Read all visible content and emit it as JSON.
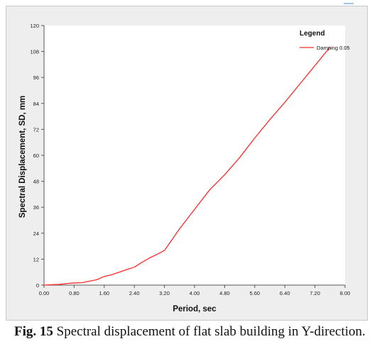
{
  "chart_data": {
    "type": "line",
    "xlabel": "Period, sec",
    "ylabel": "Spectral Displacement, SD, mm",
    "xlim": [
      0,
      8
    ],
    "ylim": [
      0,
      120
    ],
    "x_ticks": [
      "0.00",
      "0.80",
      "1.60",
      "2.40",
      "3.20",
      "4.00",
      "4.80",
      "5.60",
      "6.40",
      "7.20",
      "8.00"
    ],
    "y_ticks": [
      "0",
      "12",
      "24",
      "36",
      "48",
      "60",
      "72",
      "84",
      "96",
      "108",
      "120"
    ],
    "grid": false,
    "legend": {
      "title": "Legend",
      "position": "top-right"
    },
    "series": [
      {
        "name": "Damping 0.05",
        "color": "#ff2a2a",
        "x": [
          0.0,
          0.2,
          0.4,
          0.6,
          0.8,
          1.0,
          1.2,
          1.4,
          1.6,
          1.8,
          2.0,
          2.2,
          2.4,
          2.6,
          2.8,
          3.0,
          3.2,
          3.4,
          3.6,
          4.0,
          4.4,
          4.8,
          5.2,
          5.6,
          6.0,
          6.4,
          6.8,
          7.2,
          7.6
        ],
        "values": [
          0.0,
          0.2,
          0.3,
          0.7,
          1.0,
          1.1,
          1.8,
          2.5,
          4.0,
          4.8,
          6.0,
          7.2,
          8.3,
          10.5,
          12.5,
          14.2,
          16.0,
          21.0,
          26.0,
          35.0,
          44.0,
          51.0,
          59.0,
          68.0,
          76.5,
          84.5,
          93.0,
          101.5,
          110.0
        ]
      }
    ]
  },
  "caption": {
    "label": "Fig. 15",
    "text": " Spectral displacement of flat slab building in Y-direction."
  }
}
